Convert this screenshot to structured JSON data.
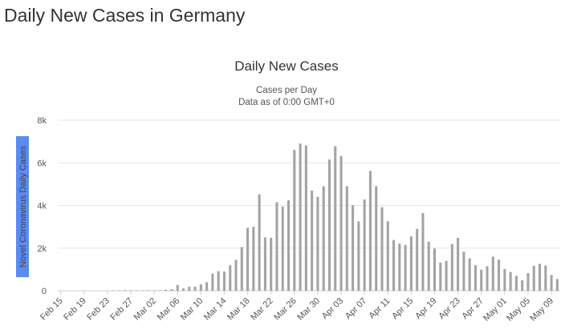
{
  "page": {
    "title": "Daily New Cases in Germany"
  },
  "chart_data": {
    "type": "bar",
    "title": "Daily New Cases",
    "subtitle": [
      "Cases per Day",
      "Data as of 0:00 GMT+0"
    ],
    "xlabel": "",
    "ylabel": "Novel Coronavirus Daily Cases",
    "ylim": [
      0,
      8000
    ],
    "yticks": [
      0,
      2000,
      4000,
      6000,
      8000
    ],
    "ytick_labels": [
      "0",
      "2k",
      "4k",
      "6k",
      "8k"
    ],
    "grid": true,
    "colors": {
      "bar": "#a3a3a3",
      "ylabel_bg": "#5b8bf0",
      "grid": "#e6e6e6"
    },
    "categories": [
      "Feb 15",
      "Feb 16",
      "Feb 17",
      "Feb 18",
      "Feb 19",
      "Feb 20",
      "Feb 21",
      "Feb 22",
      "Feb 23",
      "Feb 24",
      "Feb 25",
      "Feb 26",
      "Feb 27",
      "Feb 28",
      "Feb 29",
      "Mar 01",
      "Mar 02",
      "Mar 03",
      "Mar 04",
      "Mar 05",
      "Mar 06",
      "Mar 07",
      "Mar 08",
      "Mar 09",
      "Mar 10",
      "Mar 11",
      "Mar 12",
      "Mar 13",
      "Mar 14",
      "Mar 15",
      "Mar 16",
      "Mar 17",
      "Mar 18",
      "Mar 19",
      "Mar 20",
      "Mar 21",
      "Mar 22",
      "Mar 23",
      "Mar 24",
      "Mar 25",
      "Mar 26",
      "Mar 27",
      "Mar 28",
      "Mar 29",
      "Mar 30",
      "Mar 31",
      "Apr 01",
      "Apr 02",
      "Apr 03",
      "Apr 04",
      "Apr 05",
      "Apr 06",
      "Apr 07",
      "Apr 08",
      "Apr 09",
      "Apr 10",
      "Apr 11",
      "Apr 12",
      "Apr 13",
      "Apr 14",
      "Apr 15",
      "Apr 16",
      "Apr 17",
      "Apr 18",
      "Apr 19",
      "Apr 20",
      "Apr 21",
      "Apr 22",
      "Apr 23",
      "Apr 24",
      "Apr 25",
      "Apr 26",
      "Apr 27",
      "Apr 28",
      "Apr 29",
      "Apr 30",
      "May 01",
      "May 02",
      "May 03",
      "May 04",
      "May 05",
      "May 06",
      "May 07",
      "May 08",
      "May 09",
      "May 10"
    ],
    "x_tick_labels": [
      "Feb 15",
      "Feb 19",
      "Feb 23",
      "Feb 27",
      "Mar 02",
      "Mar 06",
      "Mar 10",
      "Mar 14",
      "Mar 18",
      "Mar 22",
      "Mar 26",
      "Mar 30",
      "Apr 03",
      "Apr 07",
      "Apr 11",
      "Apr 15",
      "Apr 19",
      "Apr 23",
      "Apr 27",
      "May 01",
      "May 05",
      "May 09"
    ],
    "series": [
      {
        "values": [
          0,
          0,
          0,
          0,
          0,
          0,
          0,
          0,
          0,
          10,
          20,
          30,
          20,
          20,
          20,
          20,
          10,
          20,
          50,
          70,
          270,
          110,
          190,
          190,
          300,
          400,
          800,
          920,
          900,
          1200,
          1450,
          2050,
          2950,
          3000,
          4520,
          2500,
          2480,
          4150,
          3950,
          4240,
          6600,
          6900,
          6820,
          4700,
          4400,
          4900,
          6150,
          6780,
          6320,
          4900,
          4010,
          3250,
          4280,
          5620,
          4900,
          3920,
          3260,
          2380,
          2210,
          2150,
          2550,
          2900,
          3640,
          2300,
          1980,
          1320,
          1400,
          2190,
          2480,
          1830,
          1520,
          1200,
          990,
          1150,
          1600,
          1460,
          1020,
          880,
          700,
          490,
          830,
          1170,
          1260,
          1180,
          740,
          550
        ]
      }
    ]
  }
}
